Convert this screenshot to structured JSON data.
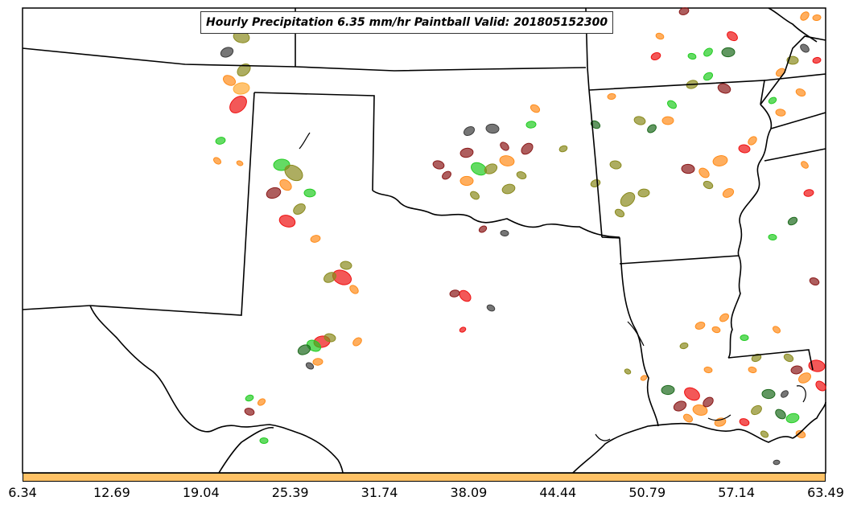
{
  "title": "Hourly Precipitation 6.35 mm/hr Paintball Valid: 201805152300",
  "colorbar": {
    "color": "#ffc266",
    "labels": [
      "6.34",
      "12.69",
      "19.04",
      "25.39",
      "31.74",
      "38.09",
      "44.44",
      "50.79",
      "57.14",
      "63.49"
    ]
  },
  "paintball_colors": {
    "red": "#ee1111",
    "dark_red": "#8b1a1a",
    "orange": "#ff8c1a",
    "light_orange": "#ffaa33",
    "green": "#22cc22",
    "dark_green": "#1e6b1e",
    "olive": "#8a8a1e",
    "gray": "#3c3c3c"
  }
}
